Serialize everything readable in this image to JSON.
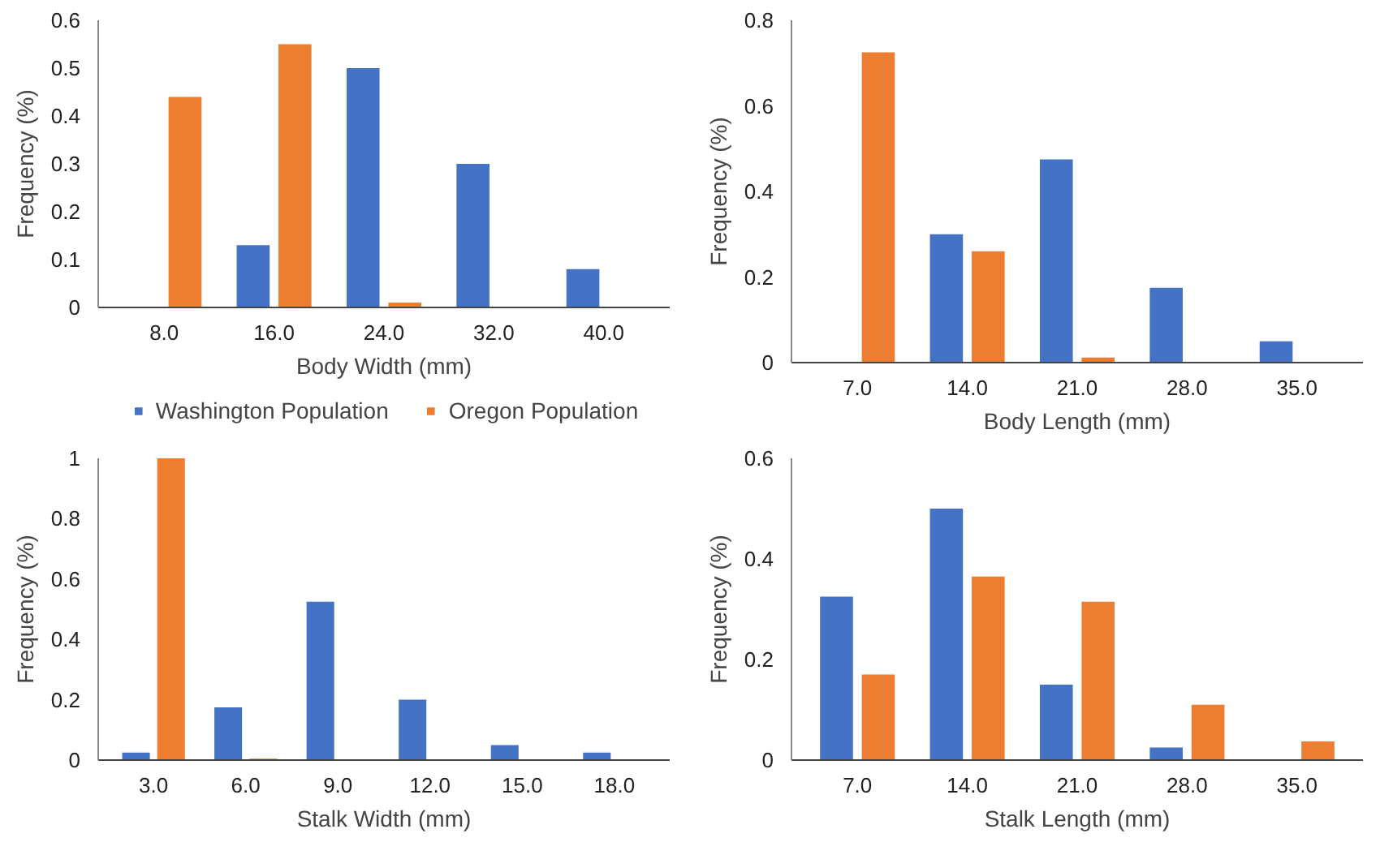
{
  "chart_data": [
    {
      "type": "bar",
      "xlabel": "Body Width (mm)",
      "ylabel": "Frequency (%)",
      "categories": [
        "8.0",
        "16.0",
        "24.0",
        "32.0",
        "40.0"
      ],
      "ylim": [
        0,
        0.6
      ],
      "yticks": [
        0,
        0.1,
        0.2,
        0.3,
        0.4,
        0.5,
        0.6
      ],
      "grid": false,
      "legend": "bottom",
      "series": [
        {
          "name": "Washington Population",
          "color": "#4472c4",
          "values": [
            0,
            0.13,
            0.5,
            0.3,
            0.08
          ]
        },
        {
          "name": "Oregon Population",
          "color": "#ed7d31",
          "values": [
            0.44,
            0.55,
            0.01,
            0,
            0
          ]
        }
      ]
    },
    {
      "type": "bar",
      "xlabel": "Body Length (mm)",
      "ylabel": "Frequency (%)",
      "categories": [
        "7.0",
        "14.0",
        "21.0",
        "28.0",
        "35.0"
      ],
      "ylim": [
        0,
        0.8
      ],
      "yticks": [
        0,
        0.2,
        0.4,
        0.6,
        0.8
      ],
      "grid": false,
      "series": [
        {
          "color": "#4472c4",
          "values": [
            0,
            0.3,
            0.475,
            0.175,
            0.05
          ]
        },
        {
          "color": "#ed7d31",
          "values": [
            0.725,
            0.26,
            0.012,
            0,
            0
          ]
        }
      ]
    },
    {
      "type": "bar",
      "xlabel": "Stalk Width (mm)",
      "ylabel": "Frequency (%)",
      "categories": [
        "3.0",
        "6.0",
        "9.0",
        "12.0",
        "15.0",
        "18.0"
      ],
      "ylim": [
        0,
        1
      ],
      "yticks": [
        0,
        0.2,
        0.4,
        0.6,
        0.8,
        1
      ],
      "grid": false,
      "series": [
        {
          "color": "#4472c4",
          "values": [
            0.025,
            0.175,
            0.525,
            0.2,
            0.05,
            0.025
          ]
        },
        {
          "color": "#ed7d31",
          "values": [
            1.0,
            0.005,
            0,
            0,
            0,
            0
          ]
        }
      ]
    },
    {
      "type": "bar",
      "xlabel": "Stalk Length (mm)",
      "ylabel": "Frequency (%)",
      "categories": [
        "7.0",
        "14.0",
        "21.0",
        "28.0",
        "35.0"
      ],
      "ylim": [
        0,
        0.6
      ],
      "yticks": [
        0,
        0.2,
        0.4,
        0.6
      ],
      "grid": false,
      "series": [
        {
          "color": "#4472c4",
          "values": [
            0.325,
            0.5,
            0.15,
            0.025,
            0
          ]
        },
        {
          "color": "#ed7d31",
          "values": [
            0.17,
            0.365,
            0.315,
            0.11,
            0.037
          ]
        }
      ]
    }
  ]
}
